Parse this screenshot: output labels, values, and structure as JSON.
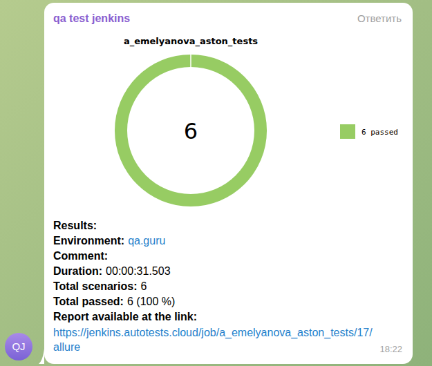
{
  "message": {
    "sender": "qa test jenkins",
    "reply": "Ответить",
    "time": "18:22",
    "avatar": "QJ",
    "lines": [
      {
        "label": "Results:"
      },
      {
        "label": "Environment:",
        "value": "qa.guru",
        "link": true
      },
      {
        "label": "Comment:"
      },
      {
        "label": "Duration:",
        "value": "00:00:31.503"
      },
      {
        "label": "Total scenarios:",
        "value": "6"
      },
      {
        "label": "Total passed:",
        "value": "6 (100 %)"
      },
      {
        "label": "Report available at the link:"
      }
    ],
    "report_link": [
      "https://jenkins.autotests.cloud/job/a_emelyanova_aston_tests/17/",
      "allure"
    ]
  },
  "chart_data": {
    "type": "donut",
    "title": "a_emelyanova_aston_tests",
    "categories": [
      "6 passed"
    ],
    "values": [
      6
    ],
    "colors": [
      "#97cc63"
    ],
    "total": 6,
    "legend": "right"
  }
}
